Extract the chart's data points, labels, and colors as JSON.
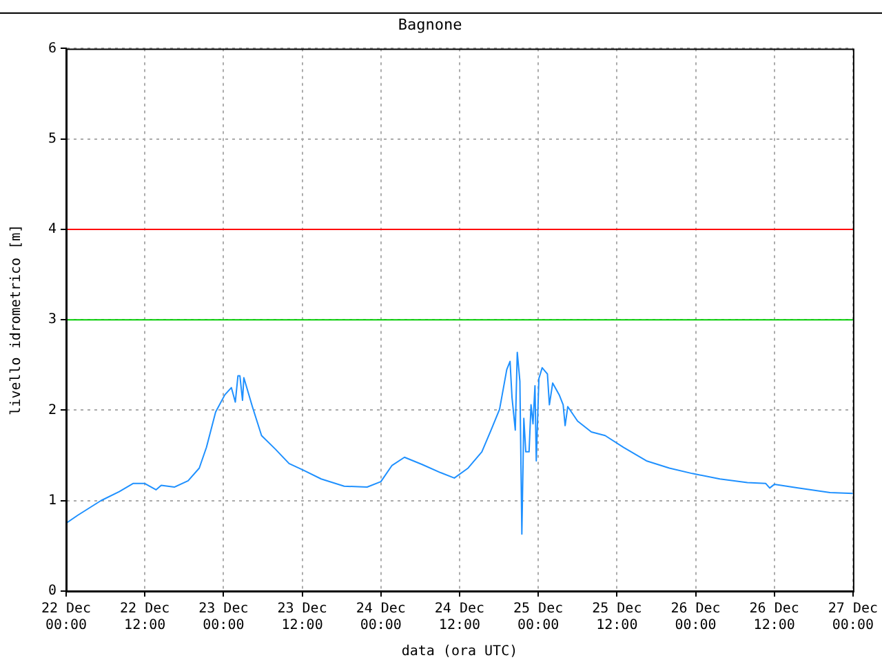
{
  "chart_data": {
    "type": "line",
    "title": "Bagnone",
    "xlabel": "data (ora UTC)",
    "ylabel": "livello idrometrico [m]",
    "x": [
      "--12-22T00:00",
      "--12-22T01:48",
      "--12-22T05:18",
      "--12-22T08:06",
      "--12-22T10:12",
      "--12-22T12:00",
      "--12-22T13:42",
      "--12-22T14:30",
      "--12-22T16:30",
      "--12-22T18:36",
      "--12-22T20:18",
      "--12-22T21:24",
      "--12-22T22:48",
      "--12-23T00:12",
      "--12-23T01:12",
      "--12-23T01:48",
      "--12-23T02:12",
      "--12-23T02:30",
      "--12-23T02:54",
      "--12-23T03:06",
      "--12-23T04:24",
      "--12-23T05:48",
      "--12-23T07:54",
      "--12-23T10:00",
      "--12-23T12:06",
      "--12-23T14:54",
      "--12-23T18:24",
      "--12-23T21:54",
      "--12-24T00:00",
      "--12-24T01:42",
      "--12-24T03:36",
      "--12-24T06:18",
      "--12-24T09:06",
      "--12-24T11:12",
      "--12-24T13:18",
      "--12-24T15:24",
      "--12-24T16:48",
      "--12-24T18:06",
      "--12-24T19:12",
      "--12-24T19:42",
      "--12-24T20:00",
      "--12-24T20:30",
      "--12-24T20:48",
      "--12-24T21:12",
      "--12-24T21:30",
      "--12-24T21:48",
      "--12-24T22:06",
      "--12-24T22:36",
      "--12-24T22:54",
      "--12-24T23:12",
      "--12-24T23:30",
      "--12-24T23:42",
      "--12-25T00:06",
      "--12-25T00:36",
      "--12-25T01:24",
      "--12-25T01:42",
      "--12-25T02:12",
      "--12-25T03:12",
      "--12-25T03:48",
      "--12-25T04:06",
      "--12-25T04:30",
      "--12-25T06:00",
      "--12-25T08:06",
      "--12-25T10:12",
      "--12-25T13:00",
      "--12-25T16:30",
      "--12-25T20:00",
      "--12-25T23:30",
      "--12-26T03:42",
      "--12-26T07:54",
      "--12-26T10:42",
      "--12-26T11:18",
      "--12-26T12:00",
      "--12-26T15:36",
      "--12-26T20:30",
      "--12-27T00:00"
    ],
    "series": [
      {
        "color": "#1e90ff",
        "values": [
          0.75,
          0.84,
          1.0,
          1.1,
          1.19,
          1.19,
          1.12,
          1.17,
          1.15,
          1.22,
          1.36,
          1.59,
          1.98,
          2.17,
          2.25,
          2.09,
          2.38,
          2.38,
          2.11,
          2.36,
          2.04,
          1.72,
          1.57,
          1.41,
          1.34,
          1.24,
          1.16,
          1.15,
          1.21,
          1.39,
          1.48,
          1.4,
          1.31,
          1.25,
          1.36,
          1.54,
          1.78,
          2.01,
          2.45,
          2.54,
          2.14,
          1.78,
          2.64,
          2.32,
          0.63,
          1.91,
          1.54,
          1.54,
          2.06,
          1.85,
          2.27,
          1.44,
          2.35,
          2.47,
          2.4,
          2.06,
          2.3,
          2.17,
          2.06,
          1.83,
          2.04,
          1.88,
          1.76,
          1.72,
          1.59,
          1.44,
          1.36,
          1.3,
          1.24,
          1.2,
          1.19,
          1.14,
          1.18,
          1.14,
          1.09,
          1.08
        ]
      }
    ],
    "xlim": [
      "--12-22T00:00",
      "--12-27T00:00"
    ],
    "xticks": [
      {
        "value": "--12-22T00:00",
        "label": "22 Dec\n00:00"
      },
      {
        "value": "--12-22T12:00",
        "label": "22 Dec\n12:00"
      },
      {
        "value": "--12-23T00:00",
        "label": "23 Dec\n00:00"
      },
      {
        "value": "--12-23T12:00",
        "label": "23 Dec\n12:00"
      },
      {
        "value": "--12-24T00:00",
        "label": "24 Dec\n00:00"
      },
      {
        "value": "--12-24T12:00",
        "label": "24 Dec\n12:00"
      },
      {
        "value": "--12-25T00:00",
        "label": "25 Dec\n00:00"
      },
      {
        "value": "--12-25T12:00",
        "label": "25 Dec\n12:00"
      },
      {
        "value": "--12-26T00:00",
        "label": "26 Dec\n00:00"
      },
      {
        "value": "--12-26T12:00",
        "label": "26 Dec\n12:00"
      },
      {
        "value": "--12-27T00:00",
        "label": "27 Dec\n00:00"
      }
    ],
    "ylim": [
      0,
      6
    ],
    "yticks": [
      0,
      1,
      2,
      3,
      4,
      5,
      6
    ],
    "ref_lines": [
      {
        "axis": "y",
        "value": 4,
        "color": "#ff0000"
      },
      {
        "axis": "y",
        "value": 3,
        "color": "#00cc00"
      }
    ],
    "grid": true,
    "legend": false,
    "marker": "none",
    "line_style": "solid"
  }
}
